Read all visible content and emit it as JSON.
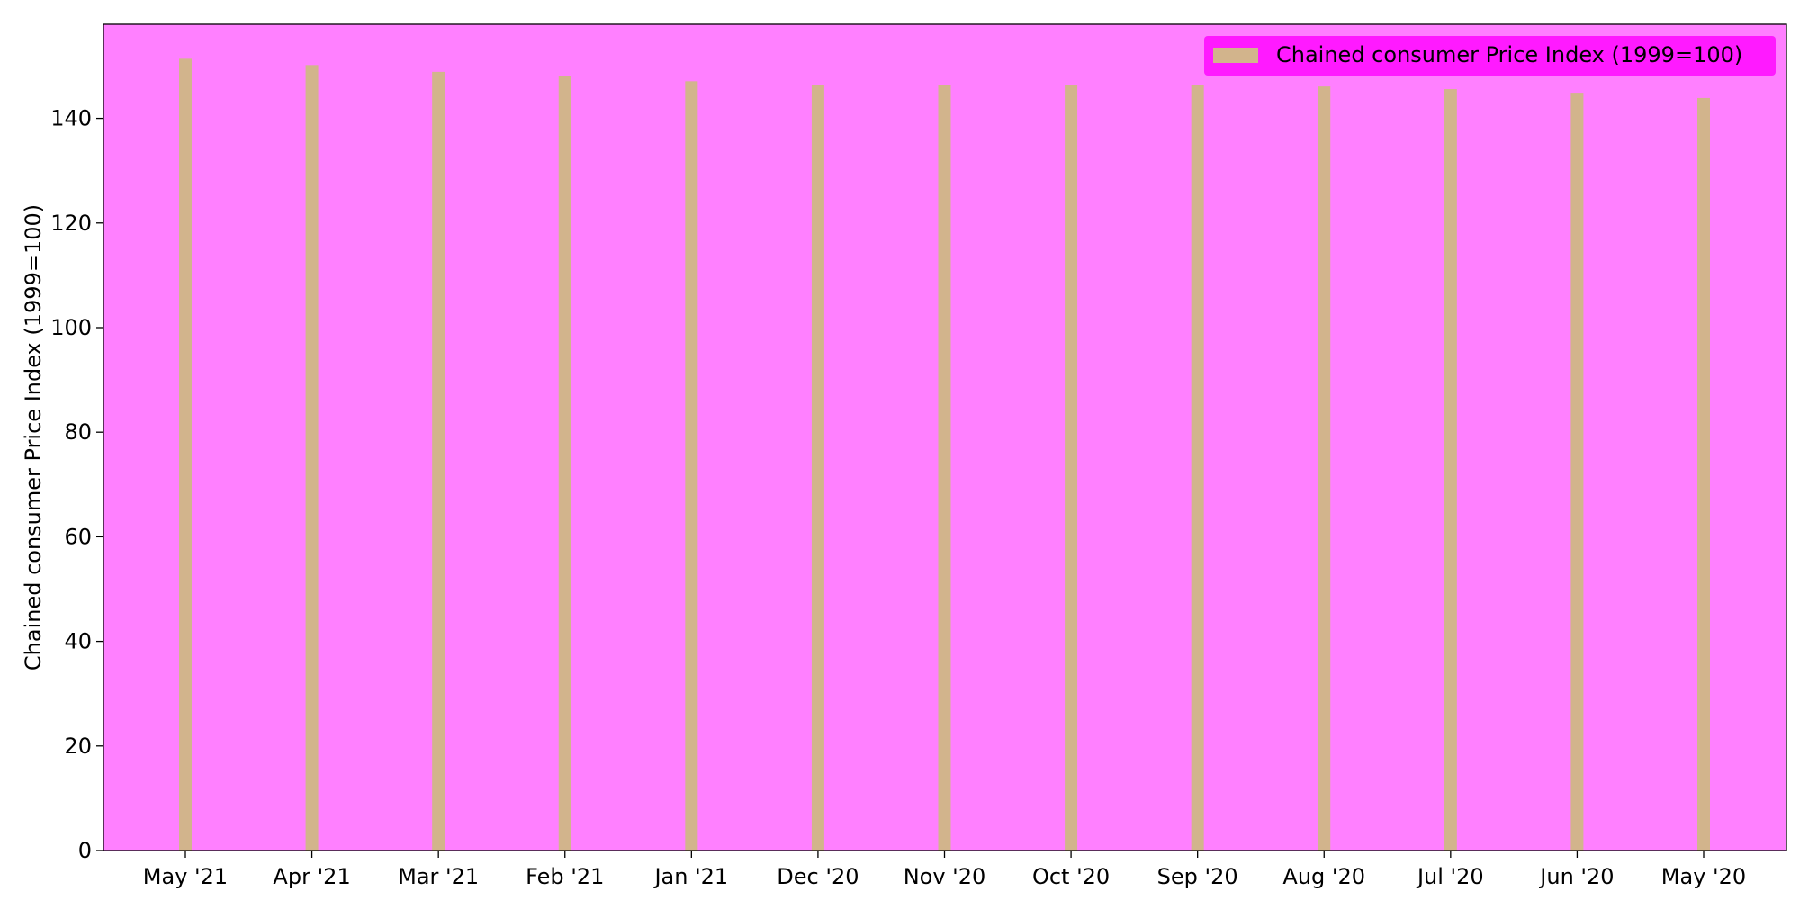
{
  "chart_data": {
    "type": "bar",
    "title": "",
    "xlabel": "",
    "ylabel": "Chained consumer Price Index (1999=100)",
    "categories": [
      "May '21",
      "Apr '21",
      "Mar '21",
      "Feb '21",
      "Jan '21",
      "Dec '20",
      "Nov '20",
      "Oct '20",
      "Sep '20",
      "Aug '20",
      "Jul '20",
      "Jun '20",
      "May '20"
    ],
    "series": [
      {
        "name": "Chained consumer Price Index (1999=100)",
        "values": [
          151.4,
          150.2,
          148.9,
          148.1,
          147.1,
          146.4,
          146.3,
          146.3,
          146.3,
          146.1,
          145.6,
          144.9,
          143.9
        ]
      }
    ],
    "ylim": [
      0,
      158
    ],
    "yticks": [
      0,
      20,
      40,
      60,
      80,
      100,
      120,
      140
    ],
    "grid": false,
    "legend_position": "top-right",
    "colors": {
      "plot_background": "#ff80ff",
      "bar": "#d2b48c",
      "legend_background": "#ff1aff",
      "axes": "#000000"
    }
  }
}
